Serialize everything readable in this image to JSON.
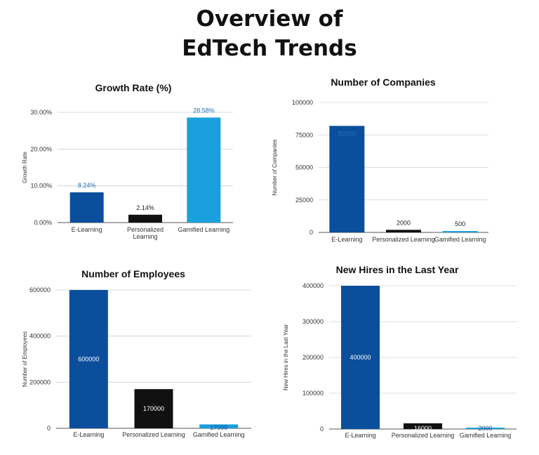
{
  "page": {
    "title_lines": [
      "Overview of",
      "EdTech Trends"
    ]
  },
  "chart_data": [
    {
      "type": "bar",
      "title": "Growth Rate (%)",
      "xlabel": "",
      "ylabel": "Growth Rate",
      "categories": [
        "E-Learning",
        "Personalized Learning",
        "Gamified Learning"
      ],
      "category_lines": [
        [
          "E-Learning"
        ],
        [
          "Personalized",
          "Learning"
        ],
        [
          "Gamified Learning"
        ]
      ],
      "values": [
        8.24,
        2.14,
        28.58
      ],
      "data_labels": [
        "8.24%",
        "2.14%",
        "28.58%"
      ],
      "label_position": [
        "above",
        "above",
        "above"
      ],
      "ylim": [
        0,
        30
      ],
      "yticks": [
        0,
        10,
        20,
        30
      ],
      "ytick_labels": [
        "0.00%",
        "10.00%",
        "20.00%",
        "30.00%"
      ],
      "colors": [
        "#0b4f9c",
        "#111111",
        "#1aa0dc"
      ],
      "label_colors": [
        "#1f6fb8",
        "#222222",
        "#1f6fb8"
      ],
      "grid": true
    },
    {
      "type": "bar",
      "title": "Number of Companies",
      "xlabel": "",
      "ylabel": "Number of Companies",
      "categories": [
        "E-Learning",
        "Personalized Learning",
        "Gamified Learning"
      ],
      "category_lines": [
        [
          "E-Learning"
        ],
        [
          "Personalized Learning"
        ],
        [
          "Gamified Learning"
        ]
      ],
      "values": [
        82000,
        2000,
        500
      ],
      "data_labels": [
        "82000",
        "2000",
        "500"
      ],
      "label_position": [
        "inside-top",
        "above",
        "above"
      ],
      "ylim": [
        0,
        100000
      ],
      "yticks": [
        0,
        25000,
        50000,
        75000,
        100000
      ],
      "ytick_labels": [
        "0",
        "25000",
        "50000",
        "75000",
        "100000"
      ],
      "colors": [
        "#0b4f9c",
        "#111111",
        "#1aa0dc"
      ],
      "label_colors": [
        "#1f6fb8",
        "#222222",
        "#222222"
      ],
      "grid": true
    },
    {
      "type": "bar",
      "title": "Number of Employees",
      "xlabel": "",
      "ylabel": "Number of Employees",
      "categories": [
        "E-Learning",
        "Personalized Learning",
        "Gamified Learning"
      ],
      "category_lines": [
        [
          "E-Learning"
        ],
        [
          "Personalized Learning"
        ],
        [
          "Gamified Learning"
        ]
      ],
      "values": [
        600000,
        170000,
        17000
      ],
      "data_labels": [
        "600000",
        "170000",
        "17000"
      ],
      "label_position": [
        "inside-middle",
        "inside-middle",
        "inside-middle"
      ],
      "ylim": [
        0,
        600000
      ],
      "yticks": [
        0,
        200000,
        400000,
        600000
      ],
      "ytick_labels": [
        "0",
        "200000",
        "400000",
        "600000"
      ],
      "colors": [
        "#0b4f9c",
        "#111111",
        "#1aa0dc"
      ],
      "label_colors": [
        "#ffffff",
        "#ffffff",
        "#0b4f9c"
      ],
      "grid": true
    },
    {
      "type": "bar",
      "title": "New Hires in the Last Year",
      "xlabel": "",
      "ylabel": "New Hires in the Last Year",
      "categories": [
        "E-Learning",
        "Personalized Learning",
        "Gamified Learning"
      ],
      "category_lines": [
        [
          "E-Learning"
        ],
        [
          "Personalized Learning"
        ],
        [
          "Gamified Learning"
        ]
      ],
      "values": [
        400000,
        16000,
        2000
      ],
      "data_labels": [
        "400000",
        "16000",
        "2000"
      ],
      "label_position": [
        "inside-middle",
        "inside-middle",
        "inside-middle"
      ],
      "ylim": [
        0,
        400000
      ],
      "yticks": [
        0,
        100000,
        200000,
        300000,
        400000
      ],
      "ytick_labels": [
        "0",
        "100000",
        "200000",
        "300000",
        "400000"
      ],
      "colors": [
        "#0b4f9c",
        "#111111",
        "#1aa0dc"
      ],
      "label_colors": [
        "#ffffff",
        "#ffffff",
        "#0b4f9c"
      ],
      "grid": true
    }
  ]
}
